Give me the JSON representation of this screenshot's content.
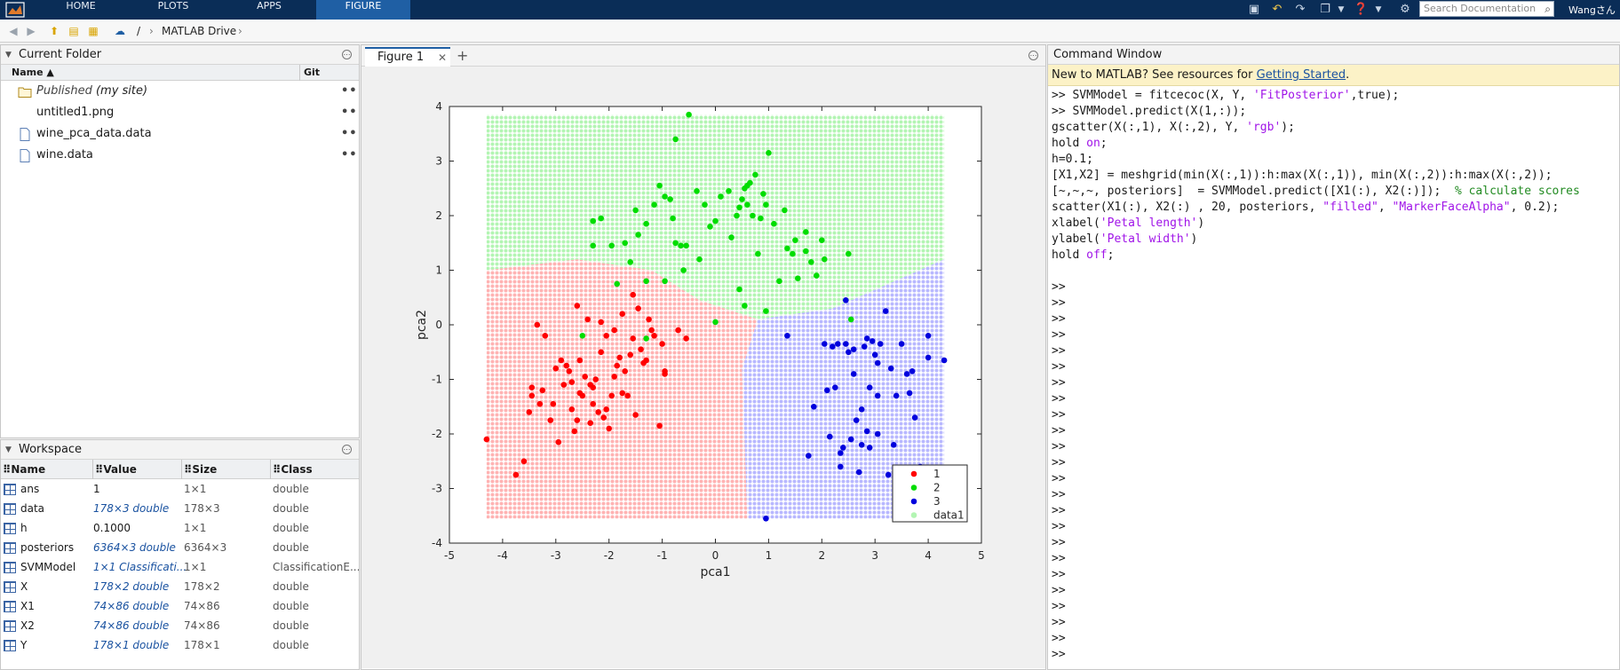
{
  "toolstrip": {
    "tabs": [
      "HOME",
      "PLOTS",
      "APPS",
      "FIGURE"
    ],
    "active_tab": "FIGURE",
    "search_placeholder": "Search Documentation",
    "user": "Wangさん"
  },
  "address": {
    "root": "/",
    "crumb": "MATLAB Drive"
  },
  "current_folder": {
    "title": "Current Folder",
    "col_name": "Name ▲",
    "col_git": "Git",
    "items": [
      {
        "name": "Published",
        "suffix": "(my site)",
        "type": "folder"
      },
      {
        "name": "untitled1.png",
        "type": "png"
      },
      {
        "name": "wine_pca_data.data",
        "type": "file"
      },
      {
        "name": "wine.data",
        "type": "file"
      }
    ],
    "more": "•••"
  },
  "workspace": {
    "title": "Workspace",
    "columns": [
      "Name",
      "Value",
      "Size",
      "Class"
    ],
    "rows": [
      {
        "name": "ans",
        "value": "1",
        "size": "1×1",
        "class": "double",
        "link": false
      },
      {
        "name": "data",
        "value": "178×3 double",
        "size": "178×3",
        "class": "double",
        "link": true
      },
      {
        "name": "h",
        "value": "0.1000",
        "size": "1×1",
        "class": "double",
        "link": false
      },
      {
        "name": "posteriors",
        "value": "6364×3 double",
        "size": "6364×3",
        "class": "double",
        "link": true
      },
      {
        "name": "SVMModel",
        "value": "1×1 Classificati...",
        "size": "1×1",
        "class": "ClassificationE...",
        "link": true
      },
      {
        "name": "X",
        "value": "178×2 double",
        "size": "178×2",
        "class": "double",
        "link": true
      },
      {
        "name": "X1",
        "value": "74×86 double",
        "size": "74×86",
        "class": "double",
        "link": true
      },
      {
        "name": "X2",
        "value": "74×86 double",
        "size": "74×86",
        "class": "double",
        "link": true
      },
      {
        "name": "Y",
        "value": "178×1 double",
        "size": "178×1",
        "class": "double",
        "link": true
      }
    ]
  },
  "figure": {
    "tab_label": "Figure 1",
    "add_label": "+"
  },
  "command_window": {
    "title": "Command Window",
    "banner_text": "New to MATLAB? See resources for ",
    "banner_link": "Getting Started",
    "banner_end": ".",
    "lines": [
      ">> SVMModel = fitcecoc(X, Y, 'FitPosterior',true);",
      ">> SVMModel.predict(X(1,:));",
      "gscatter(X(:,1), X(:,2), Y, 'rgb');",
      "hold on;",
      "h=0.1;",
      "[X1,X2] = meshgrid(min(X(:,1)):h:max(X(:,1)), min(X(:,2)):h:max(X(:,2));",
      "[~,~,~, posteriors]  = SVMModel.predict([X1(:), X2(:)]);  % calculate scores",
      "scatter(X1(:), X2(:) , 20, posteriors, \"filled\", \"MarkerFaceAlpha\", 0.2);",
      "xlabel('Petal length')",
      "ylabel('Petal width')",
      "hold off;"
    ],
    "prompt": ">>",
    "prompt_count": 24
  },
  "chart_data": {
    "type": "scatter",
    "xlabel": "pca1",
    "ylabel": "pca2",
    "xlim": [
      -5,
      5
    ],
    "ylim": [
      -4,
      4
    ],
    "xticks": [
      -5,
      -4,
      -3,
      -2,
      -1,
      0,
      1,
      2,
      3,
      4,
      5
    ],
    "yticks": [
      -4,
      -3,
      -2,
      -1,
      0,
      1,
      2,
      3,
      4
    ],
    "legend_position": "bottom-right",
    "background_region": {
      "name": "data1",
      "x_range": [
        -4.3,
        4.3
      ],
      "y_range": [
        -3.55,
        3.85
      ],
      "colors": {
        "1": "#ffb3b3",
        "2": "#b3f5b3",
        "3": "#b8b8ff"
      }
    },
    "series": [
      {
        "name": "1",
        "color": "#ff0000",
        "points": [
          [
            -4.3,
            -2.1
          ],
          [
            -3.75,
            -2.75
          ],
          [
            -3.6,
            -2.5
          ],
          [
            -3.5,
            -1.6
          ],
          [
            -3.45,
            -1.3
          ],
          [
            -3.45,
            -1.15
          ],
          [
            -3.3,
            -1.45
          ],
          [
            -3.2,
            -0.2
          ],
          [
            -3.1,
            -1.75
          ],
          [
            -3.05,
            -1.45
          ],
          [
            -3.0,
            -0.8
          ],
          [
            -2.95,
            -2.15
          ],
          [
            -2.85,
            -1.1
          ],
          [
            -2.8,
            -0.75
          ],
          [
            -2.75,
            -0.85
          ],
          [
            -2.7,
            -1.55
          ],
          [
            -2.65,
            -1.95
          ],
          [
            -2.6,
            -1.75
          ],
          [
            -2.55,
            -0.65
          ],
          [
            -2.5,
            -1.3
          ],
          [
            -2.45,
            -0.95
          ],
          [
            -2.4,
            0.1
          ],
          [
            -2.35,
            -1.1
          ],
          [
            -2.35,
            -1.8
          ],
          [
            -2.3,
            -1.45
          ],
          [
            -2.3,
            -1.15
          ],
          [
            -2.25,
            -1.0
          ],
          [
            -2.15,
            -0.5
          ],
          [
            -2.1,
            -1.7
          ],
          [
            -2.05,
            -0.2
          ],
          [
            -2.0,
            -1.9
          ],
          [
            -1.95,
            -1.3
          ],
          [
            -1.9,
            -0.95
          ],
          [
            -1.85,
            -0.75
          ],
          [
            -1.8,
            -0.6
          ],
          [
            -1.75,
            -1.25
          ],
          [
            -1.7,
            -0.85
          ],
          [
            -1.65,
            -1.3
          ],
          [
            -1.6,
            -0.55
          ],
          [
            -1.55,
            -0.25
          ],
          [
            -1.5,
            -1.65
          ],
          [
            -1.45,
            0.3
          ],
          [
            -1.4,
            -0.45
          ],
          [
            -1.3,
            -0.65
          ],
          [
            -1.25,
            0.1
          ],
          [
            -1.2,
            -0.1
          ],
          [
            -1.15,
            -0.2
          ],
          [
            -1.05,
            -1.85
          ],
          [
            -1.0,
            -0.35
          ],
          [
            -0.95,
            -0.85
          ],
          [
            -0.95,
            -0.9
          ],
          [
            -0.7,
            -0.1
          ],
          [
            -0.55,
            -0.25
          ],
          [
            -2.6,
            0.35
          ],
          [
            -2.15,
            0.05
          ],
          [
            -1.35,
            -0.7
          ],
          [
            -2.7,
            -1.05
          ],
          [
            -1.55,
            0.55
          ],
          [
            -2.2,
            -1.6
          ],
          [
            -1.75,
            0.2
          ],
          [
            -2.9,
            -0.65
          ],
          [
            -3.35,
            0.0
          ],
          [
            -1.9,
            -0.1
          ],
          [
            -2.55,
            -1.25
          ],
          [
            -2.05,
            -1.55
          ],
          [
            -3.25,
            -1.2
          ]
        ]
      },
      {
        "name": "2",
        "color": "#00dd00",
        "points": [
          [
            -0.5,
            3.85
          ],
          [
            -0.75,
            3.4
          ],
          [
            -2.3,
            1.9
          ],
          [
            -2.15,
            1.95
          ],
          [
            -1.95,
            1.45
          ],
          [
            -1.7,
            1.5
          ],
          [
            -1.45,
            1.65
          ],
          [
            -1.3,
            1.85
          ],
          [
            -1.15,
            2.2
          ],
          [
            -1.05,
            2.55
          ],
          [
            -0.95,
            2.35
          ],
          [
            -0.85,
            2.3
          ],
          [
            -0.8,
            1.95
          ],
          [
            -0.75,
            1.5
          ],
          [
            -0.65,
            1.45
          ],
          [
            -0.55,
            1.45
          ],
          [
            -0.35,
            2.45
          ],
          [
            -0.2,
            2.2
          ],
          [
            -0.1,
            1.8
          ],
          [
            0.0,
            1.9
          ],
          [
            0.1,
            2.35
          ],
          [
            0.25,
            2.45
          ],
          [
            0.3,
            1.6
          ],
          [
            0.4,
            2.0
          ],
          [
            0.45,
            2.15
          ],
          [
            0.5,
            2.3
          ],
          [
            0.55,
            2.5
          ],
          [
            0.6,
            2.2
          ],
          [
            0.65,
            2.6
          ],
          [
            0.7,
            2.0
          ],
          [
            0.75,
            2.75
          ],
          [
            0.8,
            1.3
          ],
          [
            0.85,
            1.95
          ],
          [
            0.9,
            2.4
          ],
          [
            0.95,
            2.2
          ],
          [
            1.0,
            3.15
          ],
          [
            1.1,
            1.85
          ],
          [
            1.3,
            2.1
          ],
          [
            1.35,
            1.4
          ],
          [
            1.45,
            1.3
          ],
          [
            1.5,
            1.55
          ],
          [
            1.55,
            0.85
          ],
          [
            1.7,
            1.35
          ],
          [
            1.8,
            1.15
          ],
          [
            1.9,
            0.9
          ],
          [
            2.05,
            1.2
          ],
          [
            2.5,
            1.3
          ],
          [
            2.55,
            0.1
          ],
          [
            -2.3,
            1.45
          ],
          [
            -1.85,
            0.75
          ],
          [
            -1.6,
            1.15
          ],
          [
            -1.3,
            0.8
          ],
          [
            -0.95,
            0.8
          ],
          [
            -0.6,
            1.0
          ],
          [
            0.0,
            0.05
          ],
          [
            0.45,
            0.65
          ],
          [
            0.55,
            0.35
          ],
          [
            1.2,
            0.8
          ],
          [
            -2.5,
            -0.2
          ],
          [
            -1.3,
            -0.25
          ],
          [
            -1.5,
            2.1
          ],
          [
            0.6,
            2.55
          ],
          [
            0.95,
            0.25
          ],
          [
            1.7,
            1.7
          ],
          [
            2.0,
            1.55
          ],
          [
            -0.3,
            1.2
          ]
        ]
      },
      {
        "name": "3",
        "color": "#0000dd",
        "points": [
          [
            0.95,
            -3.55
          ],
          [
            1.35,
            -0.2
          ],
          [
            1.75,
            -2.4
          ],
          [
            1.85,
            -1.5
          ],
          [
            2.05,
            -0.35
          ],
          [
            2.15,
            -2.05
          ],
          [
            2.25,
            -1.15
          ],
          [
            2.3,
            -0.35
          ],
          [
            2.35,
            -2.35
          ],
          [
            2.4,
            -2.25
          ],
          [
            2.45,
            -0.35
          ],
          [
            2.5,
            -0.5
          ],
          [
            2.55,
            -2.1
          ],
          [
            2.6,
            -0.45
          ],
          [
            2.65,
            -1.75
          ],
          [
            2.7,
            -2.7
          ],
          [
            2.75,
            -1.55
          ],
          [
            2.8,
            -0.4
          ],
          [
            2.85,
            -0.25
          ],
          [
            2.9,
            -2.25
          ],
          [
            2.95,
            -0.3
          ],
          [
            3.0,
            -0.55
          ],
          [
            3.05,
            -1.3
          ],
          [
            3.1,
            -0.35
          ],
          [
            3.2,
            0.25
          ],
          [
            3.25,
            -2.75
          ],
          [
            3.3,
            -0.8
          ],
          [
            3.4,
            -1.3
          ],
          [
            3.5,
            -0.35
          ],
          [
            3.6,
            -0.9
          ],
          [
            3.7,
            -0.85
          ],
          [
            3.75,
            -1.7
          ],
          [
            4.0,
            -0.6
          ],
          [
            4.3,
            -0.65
          ],
          [
            2.45,
            0.45
          ],
          [
            2.2,
            -0.4
          ],
          [
            2.9,
            -1.15
          ],
          [
            3.35,
            -2.2
          ],
          [
            3.65,
            -1.25
          ],
          [
            2.85,
            -1.95
          ],
          [
            2.35,
            -2.6
          ],
          [
            3.05,
            -2.0
          ],
          [
            2.75,
            -2.2
          ],
          [
            2.1,
            -1.2
          ],
          [
            4.0,
            -0.2
          ],
          [
            2.6,
            -0.9
          ],
          [
            3.85,
            -2.6
          ],
          [
            3.05,
            -0.7
          ]
        ]
      }
    ]
  }
}
